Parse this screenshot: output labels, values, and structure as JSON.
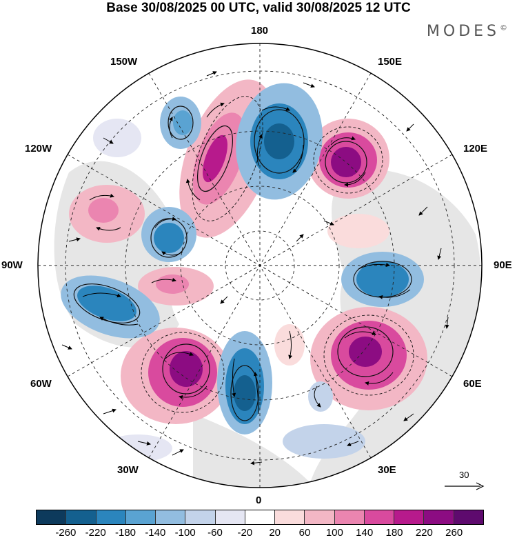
{
  "title": "Base 30/08/2025 00 UTC, valid 30/08/2025 12 UTC",
  "brand": "MODES",
  "brand_mark": "©",
  "longitude_labels": {
    "top": "180",
    "bottom": "0",
    "left": "90W",
    "right": "90E",
    "upper_left": "150W",
    "upper_right": "150E",
    "left_upper": "120W",
    "right_upper": "120E",
    "left_lower": "60W",
    "right_lower": "60E",
    "lower_left": "30W",
    "lower_right": "30E"
  },
  "reference_vector": {
    "value": "30"
  },
  "colorbar": {
    "tick_labels": [
      "-260",
      "-220",
      "-180",
      "-140",
      "-100",
      "-60",
      "-20",
      "20",
      "60",
      "100",
      "140",
      "180",
      "220",
      "260"
    ],
    "colors": [
      "#0d3a5c",
      "#14608f",
      "#2b85bd",
      "#5aa3d2",
      "#92bde0",
      "#c3d3ea",
      "#e5e6f3",
      "#ffffff",
      "#fadcdc",
      "#f3b7c5",
      "#eb85b0",
      "#d94a9e",
      "#b71a8c",
      "#8c0c82",
      "#5e0a6e"
    ]
  },
  "anomaly_cells": [
    {
      "name": "pacific-high-center",
      "value": 200
    },
    {
      "name": "beringia-low",
      "value": -180
    },
    {
      "name": "siberia-high",
      "value": 240
    },
    {
      "name": "gulf-alaska-low",
      "value": -120
    },
    {
      "name": "canada-west-high",
      "value": 100
    },
    {
      "name": "hudson-low",
      "value": -160
    },
    {
      "name": "labrador-high",
      "value": 120
    },
    {
      "name": "central-asia-low",
      "value": -180
    },
    {
      "name": "north-atlantic-low",
      "value": -200
    },
    {
      "name": "greenland-sea-high",
      "value": 240
    },
    {
      "name": "west-siberia-high",
      "value": 220
    },
    {
      "name": "northwest-atlantic-low",
      "value": -180
    }
  ]
}
